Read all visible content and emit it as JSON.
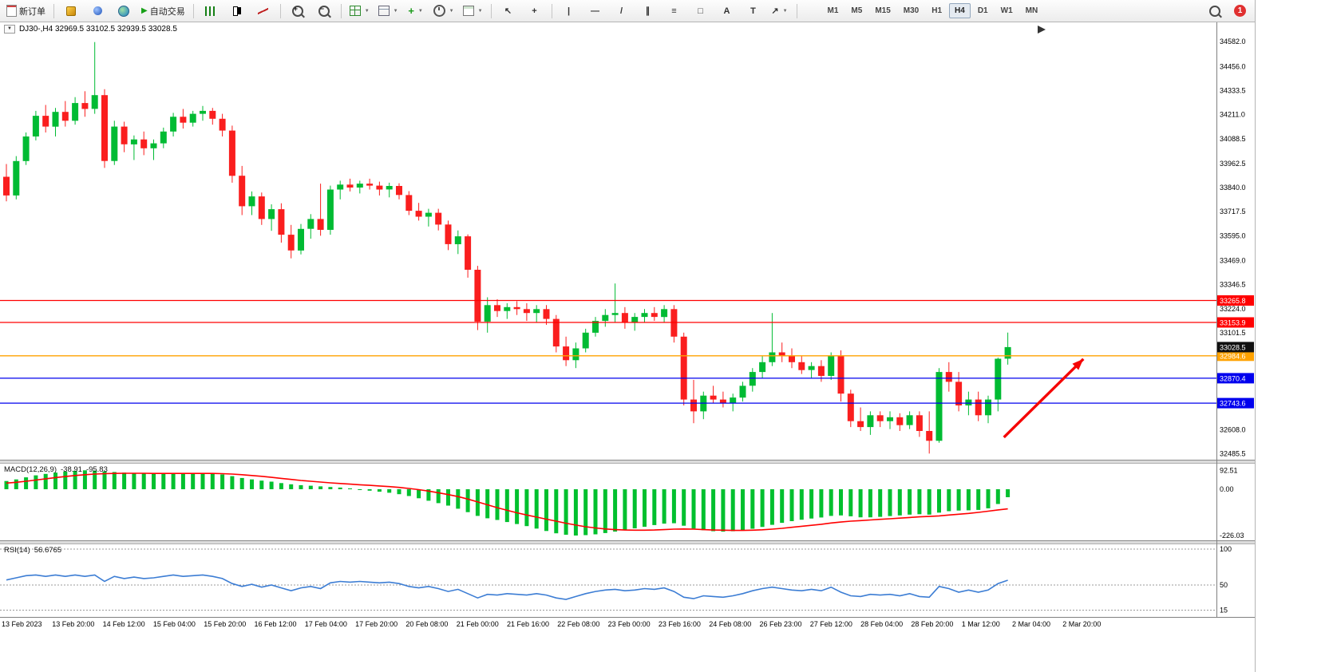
{
  "toolbar": {
    "new_order": "新订单",
    "auto_trading": "自动交易",
    "timeframes": [
      "M1",
      "M5",
      "M15",
      "M30",
      "H1",
      "H4",
      "D1",
      "W1",
      "MN"
    ],
    "active_timeframe": "H4",
    "notification_count": "1"
  },
  "icon_glyphs": {
    "collapse_caret": "▼",
    "caret": "▼",
    "play": "▶",
    "plus": "+",
    "zoom_in": "+",
    "zoom_out": "−",
    "cursor": "↖",
    "crosshair": "+",
    "vline": "|",
    "hline": "—",
    "trendline": "/",
    "channel": "∥",
    "fibonacci": "≡",
    "shapes": "□",
    "text_tool": "A",
    "label_tool": "T",
    "arrows_tool": "↗"
  },
  "chart": {
    "title": "DJ30-,H4 32969.5 33102.5 32939.5 33028.5",
    "symbol": "DJ30-",
    "timeframe": "H4",
    "current_price": "33028.5",
    "ohlc": {
      "open": "32969.5",
      "high": "33102.5",
      "low": "32939.5",
      "close": "33028.5"
    },
    "price_ticks": [
      34582.0,
      34456.0,
      34333.5,
      34211.0,
      34088.5,
      33962.5,
      33840.0,
      33717.5,
      33595.0,
      33469.0,
      33346.5,
      33224.0,
      33101.5,
      32608.0,
      32485.5
    ],
    "hlines": [
      {
        "price": 33265.8,
        "label": "33265.8",
        "color": "#ff0000"
      },
      {
        "price": 33153.9,
        "label": "33153.9",
        "color": "#ff0000"
      },
      {
        "price": 32984.6,
        "label": "32984.6",
        "color": "#ffa200"
      },
      {
        "price": 32870.4,
        "label": "32870.4",
        "color": "#0000ee"
      },
      {
        "price": 32743.6,
        "label": "32743.6",
        "color": "#0000ee"
      }
    ],
    "colors": {
      "up": "#00bb33",
      "down": "#fa1e1e",
      "macd_bar": "#00c02e",
      "macd_signal": "#ff0000",
      "rsi_line": "#3c7dd4",
      "current_price_box": "#101010"
    }
  },
  "macd_panel": {
    "label": "MACD(12,26,9)",
    "main_value": "-38.91",
    "signal_value": "-95.83",
    "scale": [
      "92.51",
      "0.00",
      "-226.03"
    ]
  },
  "rsi_panel": {
    "label": "RSI(14)",
    "value": "56.6765",
    "scale": [
      "100",
      "50",
      "15"
    ]
  },
  "chart_data": {
    "type": "candlestick",
    "symbol": "DJ30-",
    "timeframe": "H4",
    "time_labels": [
      "13 Feb 2023",
      "13 Feb 20:00",
      "14 Feb 12:00",
      "15 Feb 04:00",
      "15 Feb 20:00",
      "16 Feb 12:00",
      "17 Feb 04:00",
      "17 Feb 20:00",
      "20 Feb 08:00",
      "21 Feb 00:00",
      "21 Feb 16:00",
      "22 Feb 08:00",
      "23 Feb 00:00",
      "23 Feb 16:00",
      "24 Feb 08:00",
      "26 Feb 23:00",
      "27 Feb 12:00",
      "28 Feb 04:00",
      "28 Feb 20:00",
      "1 Mar 12:00",
      "2 Mar 04:00",
      "2 Mar 20:00"
    ],
    "price_range": [
      32460,
      34660
    ],
    "candles": [
      [
        33895,
        33960,
        33770,
        33800
      ],
      [
        33800,
        34000,
        33780,
        33975
      ],
      [
        33975,
        34120,
        33955,
        34100
      ],
      [
        34100,
        34230,
        34080,
        34205
      ],
      [
        34205,
        34260,
        34120,
        34150
      ],
      [
        34150,
        34245,
        34100,
        34225
      ],
      [
        34225,
        34280,
        34150,
        34180
      ],
      [
        34180,
        34300,
        34160,
        34270
      ],
      [
        34270,
        34330,
        34200,
        34240
      ],
      [
        34240,
        34580,
        34215,
        34310
      ],
      [
        34310,
        34340,
        33940,
        33975
      ],
      [
        33975,
        34180,
        33955,
        34150
      ],
      [
        34150,
        34175,
        34020,
        34060
      ],
      [
        34060,
        34105,
        33980,
        34085
      ],
      [
        34085,
        34125,
        34005,
        34040
      ],
      [
        34040,
        34085,
        33980,
        34065
      ],
      [
        34065,
        34145,
        34040,
        34125
      ],
      [
        34125,
        34220,
        34100,
        34200
      ],
      [
        34200,
        34240,
        34140,
        34170
      ],
      [
        34170,
        34230,
        34150,
        34215
      ],
      [
        34215,
        34255,
        34180,
        34230
      ],
      [
        34230,
        34245,
        34160,
        34190
      ],
      [
        34190,
        34215,
        34100,
        34130
      ],
      [
        34130,
        34155,
        33865,
        33900
      ],
      [
        33900,
        33950,
        33700,
        33745
      ],
      [
        33745,
        33820,
        33700,
        33795
      ],
      [
        33795,
        33815,
        33650,
        33680
      ],
      [
        33680,
        33755,
        33620,
        33730
      ],
      [
        33730,
        33760,
        33560,
        33600
      ],
      [
        33600,
        33650,
        33480,
        33520
      ],
      [
        33520,
        33655,
        33500,
        33630
      ],
      [
        33630,
        33705,
        33580,
        33680
      ],
      [
        33680,
        33860,
        33595,
        33625
      ],
      [
        33625,
        33850,
        33600,
        33830
      ],
      [
        33830,
        33875,
        33780,
        33855
      ],
      [
        33855,
        33885,
        33820,
        33840
      ],
      [
        33840,
        33875,
        33810,
        33860
      ],
      [
        33860,
        33885,
        33830,
        33850
      ],
      [
        33850,
        33870,
        33800,
        33830
      ],
      [
        33830,
        33865,
        33790,
        33848
      ],
      [
        33848,
        33862,
        33780,
        33802
      ],
      [
        33802,
        33822,
        33700,
        33722
      ],
      [
        33722,
        33762,
        33672,
        33692
      ],
      [
        33692,
        33732,
        33642,
        33712
      ],
      [
        33712,
        33732,
        33622,
        33652
      ],
      [
        33652,
        33672,
        33522,
        33552
      ],
      [
        33552,
        33622,
        33502,
        33592
      ],
      [
        33592,
        33602,
        33382,
        33422
      ],
      [
        33422,
        33442,
        33115,
        33158
      ],
      [
        33158,
        33282,
        33102,
        33242
      ],
      [
        33242,
        33272,
        33182,
        33212
      ],
      [
        33212,
        33252,
        33172,
        33232
      ],
      [
        33232,
        33262,
        33192,
        33222
      ],
      [
        33222,
        33252,
        33162,
        33202
      ],
      [
        33202,
        33242,
        33152,
        33222
      ],
      [
        33222,
        33242,
        33142,
        33172
      ],
      [
        33172,
        33192,
        33002,
        33032
      ],
      [
        33032,
        33082,
        32932,
        32962
      ],
      [
        32962,
        33052,
        32922,
        33022
      ],
      [
        33022,
        33122,
        33002,
        33102
      ],
      [
        33102,
        33182,
        33082,
        33162
      ],
      [
        33162,
        33222,
        33132,
        33192
      ],
      [
        33192,
        33352,
        33152,
        33202
      ],
      [
        33202,
        33232,
        33122,
        33152
      ],
      [
        33152,
        33202,
        33112,
        33182
      ],
      [
        33182,
        33222,
        33152,
        33202
      ],
      [
        33202,
        33232,
        33162,
        33182
      ],
      [
        33182,
        33242,
        33152,
        33222
      ],
      [
        33222,
        33242,
        33052,
        33082
      ],
      [
        33082,
        33102,
        32732,
        32762
      ],
      [
        32762,
        32862,
        32642,
        32702
      ],
      [
        32702,
        32802,
        32662,
        32782
      ],
      [
        32782,
        32832,
        32742,
        32762
      ],
      [
        32762,
        32802,
        32722,
        32742
      ],
      [
        32742,
        32792,
        32702,
        32772
      ],
      [
        32772,
        32852,
        32752,
        32832
      ],
      [
        32832,
        32922,
        32802,
        32902
      ],
      [
        32902,
        32982,
        32872,
        32952
      ],
      [
        32952,
        33202,
        32932,
        33002
      ],
      [
        33002,
        33052,
        32952,
        32982
      ],
      [
        32982,
        33022,
        32922,
        32952
      ],
      [
        32952,
        32982,
        32892,
        32912
      ],
      [
        32912,
        32952,
        32872,
        32932
      ],
      [
        32932,
        32962,
        32852,
        32882
      ],
      [
        32882,
        33002,
        32862,
        32982
      ],
      [
        32982,
        33012,
        32752,
        32792
      ],
      [
        32792,
        32812,
        32622,
        32652
      ],
      [
        32652,
        32722,
        32602,
        32622
      ],
      [
        32622,
        32702,
        32582,
        32682
      ],
      [
        32682,
        32702,
        32622,
        32652
      ],
      [
        32652,
        32702,
        32612,
        32672
      ],
      [
        32672,
        32692,
        32602,
        32632
      ],
      [
        32632,
        32702,
        32612,
        32682
      ],
      [
        32682,
        32702,
        32572,
        32602
      ],
      [
        32602,
        32702,
        32487,
        32552
      ],
      [
        32552,
        32922,
        32542,
        32902
      ],
      [
        32902,
        32952,
        32802,
        32852
      ],
      [
        32852,
        32902,
        32702,
        32732
      ],
      [
        32732,
        32802,
        32682,
        32762
      ],
      [
        32762,
        32802,
        32652,
        32682
      ],
      [
        32682,
        32782,
        32642,
        32762
      ],
      [
        32762,
        32975,
        32702,
        32969.5
      ],
      [
        32969.5,
        33102.5,
        32939.5,
        33028.5
      ]
    ],
    "macd": {
      "histogram": [
        40,
        48,
        58,
        68,
        75,
        81,
        86,
        90,
        92.5,
        91,
        87,
        84,
        81,
        79,
        77,
        76,
        76,
        77,
        77,
        78,
        78,
        76,
        72,
        64,
        55,
        48,
        42,
        37,
        30,
        24,
        20,
        17,
        14,
        11,
        8,
        4,
        -2,
        -7,
        -12,
        -17,
        -24,
        -33,
        -44,
        -56,
        -68,
        -80,
        -95,
        -112,
        -130,
        -142,
        -150,
        -160,
        -170,
        -180,
        -192,
        -204,
        -215,
        -222,
        -226,
        -224,
        -220,
        -214,
        -207,
        -199,
        -191,
        -183,
        -175,
        -168,
        -166,
        -178,
        -192,
        -200,
        -205,
        -207,
        -205,
        -200,
        -193,
        -184,
        -174,
        -164,
        -156,
        -149,
        -143,
        -138,
        -130,
        -128,
        -132,
        -137,
        -137,
        -135,
        -131,
        -128,
        -124,
        -122,
        -124,
        -114,
        -107,
        -104,
        -103,
        -101,
        -93,
        -72,
        -38.91
      ],
      "signal": [
        30,
        34,
        39,
        45,
        51,
        57,
        62,
        67,
        71,
        74,
        76,
        77,
        78,
        78,
        78,
        77,
        77,
        77,
        77,
        77,
        77,
        77,
        76,
        74,
        71,
        67,
        63,
        58,
        53,
        48,
        43,
        39,
        35,
        31,
        28,
        25,
        22,
        19,
        16,
        13,
        9,
        4,
        -2,
        -9,
        -17,
        -26,
        -36,
        -48,
        -62,
        -76,
        -90,
        -103,
        -115,
        -126,
        -136,
        -146,
        -156,
        -166,
        -175,
        -183,
        -189,
        -194,
        -197,
        -199,
        -200,
        -200,
        -199,
        -197,
        -195,
        -194,
        -195,
        -197,
        -199,
        -200,
        -201,
        -201,
        -200,
        -198,
        -195,
        -191,
        -186,
        -181,
        -176,
        -171,
        -165,
        -160,
        -156,
        -153,
        -150,
        -147,
        -144,
        -141,
        -138,
        -135,
        -133,
        -130,
        -126,
        -122,
        -118,
        -113,
        -107,
        -101,
        -95.83
      ],
      "range": [
        92.51,
        -226.03
      ]
    },
    "rsi": {
      "values": [
        57,
        60,
        63,
        64,
        62,
        64,
        62,
        64,
        62,
        64,
        55,
        62,
        59,
        61,
        59,
        60,
        62,
        64,
        62,
        63,
        64,
        62,
        59,
        52,
        48,
        51,
        47,
        50,
        46,
        42,
        46,
        48,
        45,
        53,
        55,
        54,
        55,
        54,
        53,
        54,
        52,
        48,
        46,
        48,
        45,
        41,
        44,
        38,
        32,
        37,
        36,
        38,
        37,
        36,
        38,
        36,
        32,
        30,
        34,
        38,
        41,
        43,
        44,
        42,
        43,
        45,
        44,
        46,
        41,
        33,
        31,
        35,
        34,
        33,
        35,
        38,
        42,
        45,
        47,
        45,
        43,
        42,
        44,
        42,
        47,
        40,
        35,
        34,
        37,
        36,
        37,
        35,
        38,
        34,
        33,
        48,
        45,
        40,
        43,
        40,
        43,
        52,
        56.68
      ],
      "levels": [
        100,
        50,
        15
      ]
    },
    "annotation_arrow": {
      "from_index": 101.6,
      "from_price": 32570,
      "to_index": 109.7,
      "to_price": 32968,
      "color": "#f50505"
    }
  }
}
